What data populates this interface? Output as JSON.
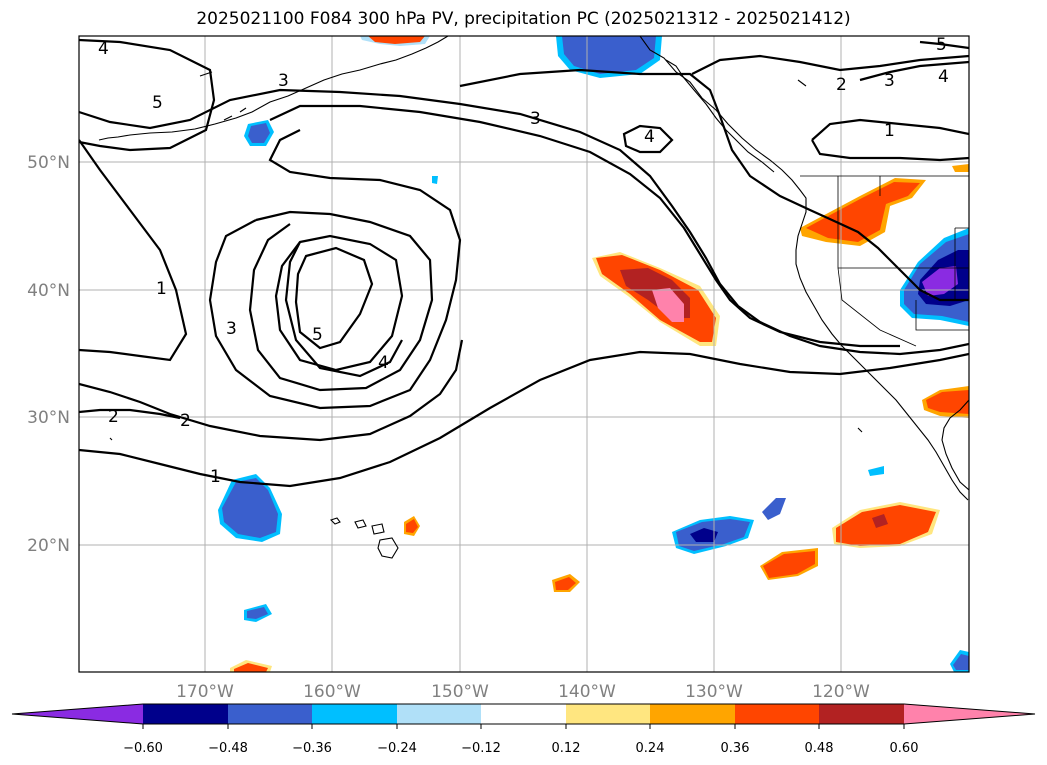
{
  "title": "2025021100 F084 300 hPa PV, precipitation PC (2025021312 - 2025021412)",
  "map": {
    "lat_labels": [
      "50°N",
      "40°N",
      "30°N",
      "20°N"
    ],
    "lon_labels": [
      "170°W",
      "160°W",
      "150°W",
      "140°W",
      "130°W",
      "120°W"
    ],
    "contour_labels": [
      "4",
      "3",
      "5",
      "3",
      "4",
      "2",
      "3",
      "4",
      "1",
      "1",
      "3",
      "5",
      "4",
      "2",
      "2",
      "1",
      "5"
    ],
    "colors": {
      "contour": "#000000",
      "coast": "#000000",
      "grid": "#b0b0b0",
      "neg_1": "#8a2be2",
      "neg_2": "#00008b",
      "neg_3": "#3a5fcd",
      "neg_4": "#00bfff",
      "neg_5": "#b0e0f8",
      "pos_1": "#ffe680",
      "pos_2": "#ffa500",
      "pos_3": "#ff4500",
      "pos_4": "#b22222",
      "pos_5": "#ff82ab"
    }
  },
  "colorbar": {
    "colors": [
      "#8a2be2",
      "#00008b",
      "#3a5fcd",
      "#00bfff",
      "#b0e0f8",
      "#ffffff",
      "#ffe680",
      "#ffa500",
      "#ff4500",
      "#b22222",
      "#ff82ab"
    ],
    "tick_labels": [
      "−0.60",
      "−0.48",
      "−0.36",
      "−0.24",
      "−0.12",
      "0.12",
      "0.24",
      "0.36",
      "0.48",
      "0.60"
    ]
  }
}
